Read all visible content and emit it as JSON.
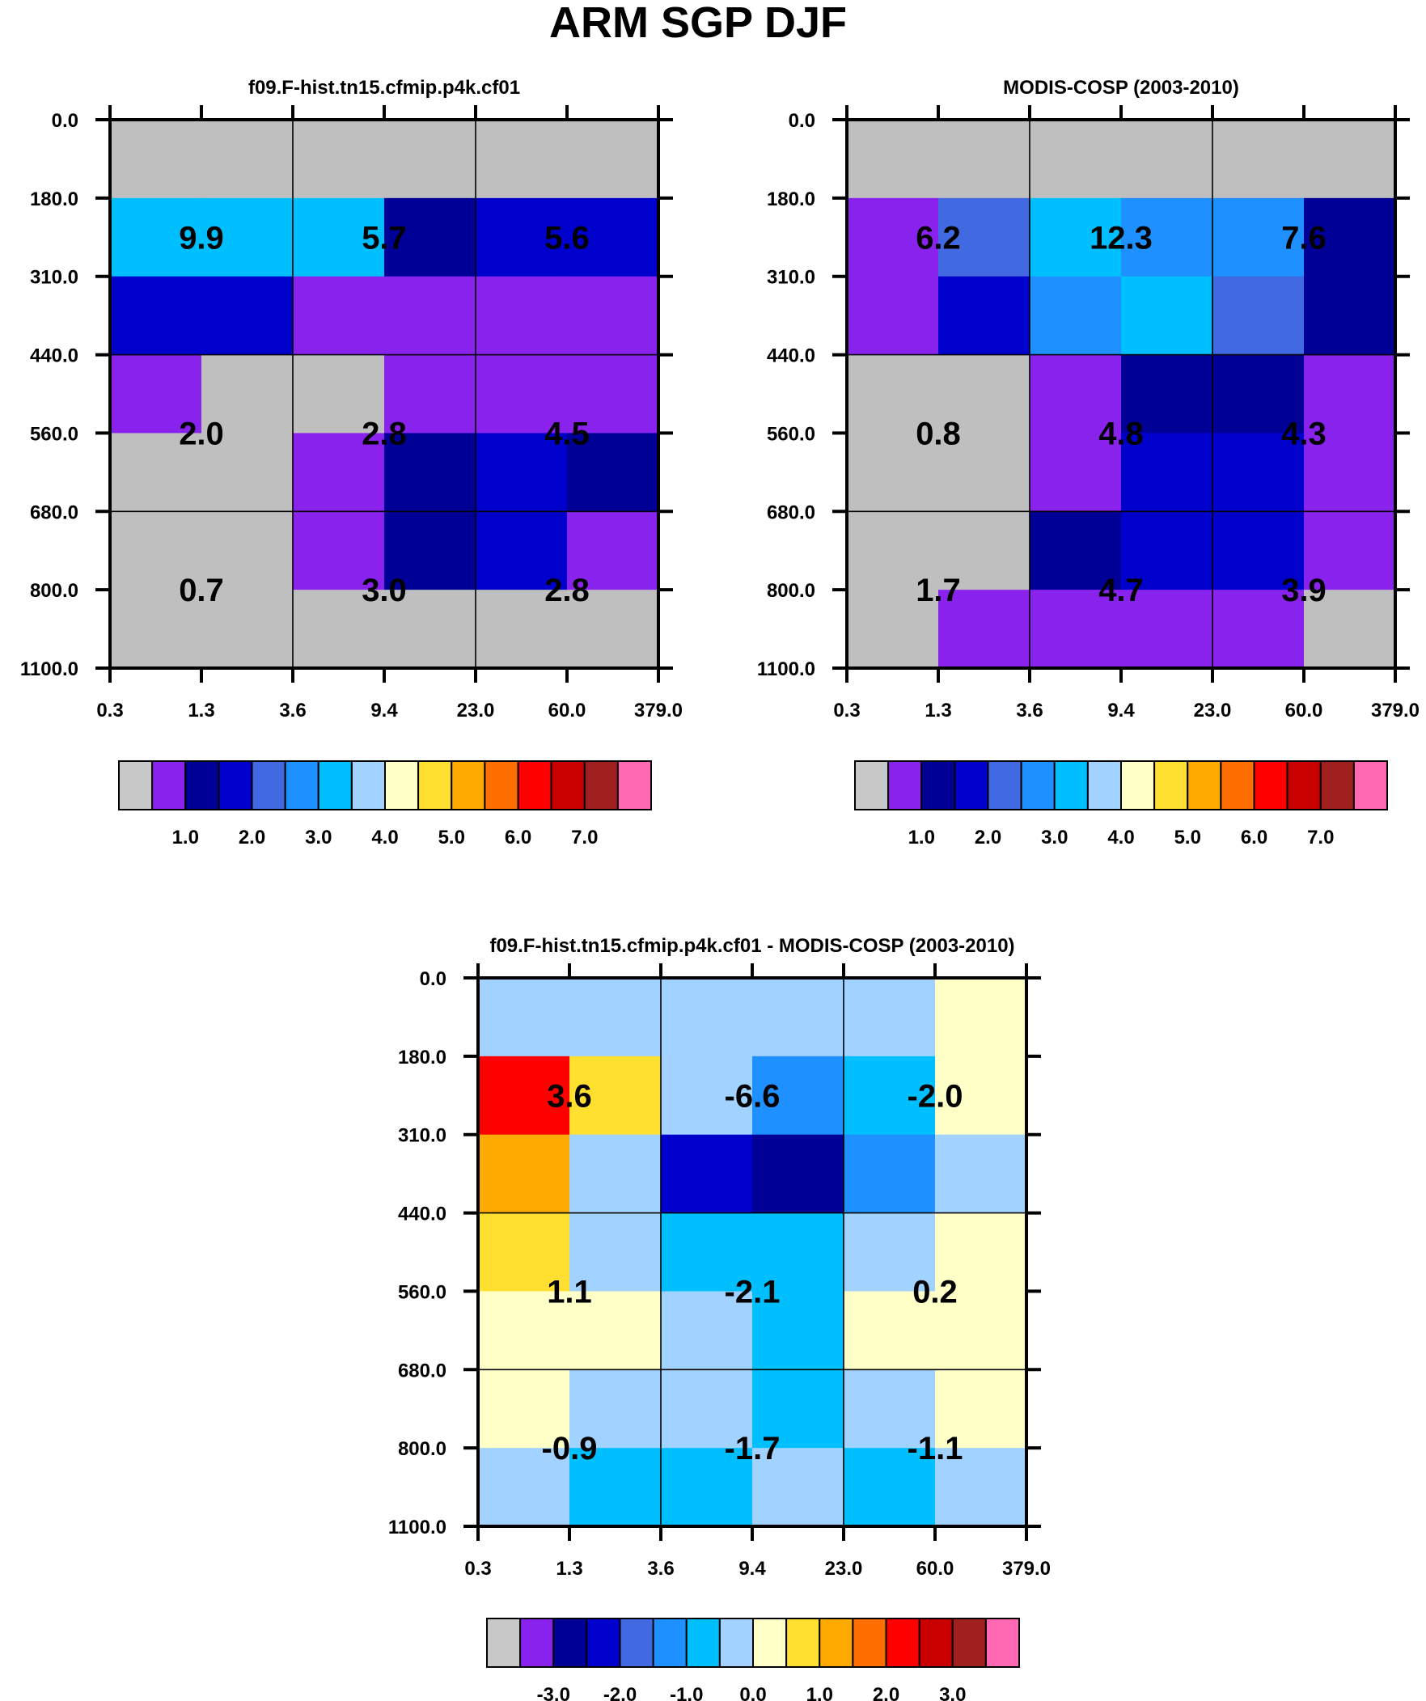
{
  "chart_data": {
    "type": "heatmap",
    "title": "ARM SGP DJF",
    "palette": [
      "#c8c8c8",
      "#8a22ee",
      "#000096",
      "#0000cd",
      "#4169e1",
      "#1e90ff",
      "#00bfff",
      "#a2d2ff",
      "#ffffc8",
      "#ffe030",
      "#ffaa00",
      "#ff6e00",
      "#ff0000",
      "#c80000",
      "#a02020",
      "#ff69b4"
    ],
    "plot_gray": "#bfbfbf",
    "x_ticks": [
      "0.3",
      "1.3",
      "3.6",
      "9.4",
      "23.0",
      "60.0",
      "379.0"
    ],
    "y_ticks": [
      "0.0",
      "180.0",
      "310.0",
      "440.0",
      "560.0",
      "680.0",
      "800.0",
      "1100.0"
    ],
    "panels": [
      {
        "title": "f09.F-hist.tn15.cfmip.p4k.cf01",
        "cell_levels": [
          [
            0,
            0,
            0,
            0,
            0,
            0
          ],
          [
            6,
            6,
            6,
            2,
            3,
            3
          ],
          [
            3,
            3,
            1,
            1,
            1,
            1
          ],
          [
            1,
            0,
            0,
            1,
            1,
            1
          ],
          [
            0,
            0,
            1,
            2,
            3,
            2
          ],
          [
            0,
            0,
            1,
            2,
            3,
            1
          ],
          [
            0,
            0,
            0,
            0,
            0,
            0
          ]
        ],
        "annotations": [
          [
            "9.9",
            "5.7",
            "5.6"
          ],
          [
            "2.0",
            "2.8",
            "4.5"
          ],
          [
            "0.7",
            "3.0",
            "2.8"
          ]
        ],
        "colorbar_labels": [
          "1.0",
          "2.0",
          "3.0",
          "4.0",
          "5.0",
          "6.0",
          "7.0"
        ]
      },
      {
        "title": "MODIS-COSP (2003-2010)",
        "cell_levels": [
          [
            0,
            0,
            0,
            0,
            0,
            0
          ],
          [
            1,
            4,
            6,
            5,
            5,
            2
          ],
          [
            1,
            3,
            5,
            6,
            4,
            2
          ],
          [
            0,
            0,
            1,
            2,
            2,
            1
          ],
          [
            0,
            0,
            1,
            3,
            3,
            1
          ],
          [
            0,
            0,
            2,
            3,
            3,
            1
          ],
          [
            0,
            1,
            1,
            1,
            1,
            0
          ]
        ],
        "annotations": [
          [
            "6.2",
            "12.3",
            "7.6"
          ],
          [
            "0.8",
            "4.8",
            "4.3"
          ],
          [
            "1.7",
            "4.7",
            "3.9"
          ]
        ],
        "colorbar_labels": [
          "1.0",
          "2.0",
          "3.0",
          "4.0",
          "5.0",
          "6.0",
          "7.0"
        ]
      },
      {
        "title": "f09.F-hist.tn15.cfmip.p4k.cf01 - MODIS-COSP (2003-2010)",
        "cell_levels": [
          [
            7,
            7,
            7,
            7,
            7,
            8
          ],
          [
            12,
            9,
            7,
            5,
            6,
            8
          ],
          [
            10,
            7,
            3,
            2,
            5,
            7
          ],
          [
            9,
            7,
            6,
            6,
            7,
            8
          ],
          [
            8,
            8,
            7,
            6,
            8,
            8
          ],
          [
            8,
            7,
            7,
            6,
            7,
            8
          ],
          [
            7,
            6,
            6,
            7,
            6,
            7
          ]
        ],
        "annotations": [
          [
            "3.6",
            "-6.6",
            "-2.0"
          ],
          [
            "1.1",
            "-2.1",
            "0.2"
          ],
          [
            "-0.9",
            "-1.7",
            "-1.1"
          ]
        ],
        "colorbar_labels": [
          "-3.0",
          "-2.0",
          "-1.0",
          "0.0",
          "1.0",
          "2.0",
          "3.0"
        ]
      }
    ]
  }
}
